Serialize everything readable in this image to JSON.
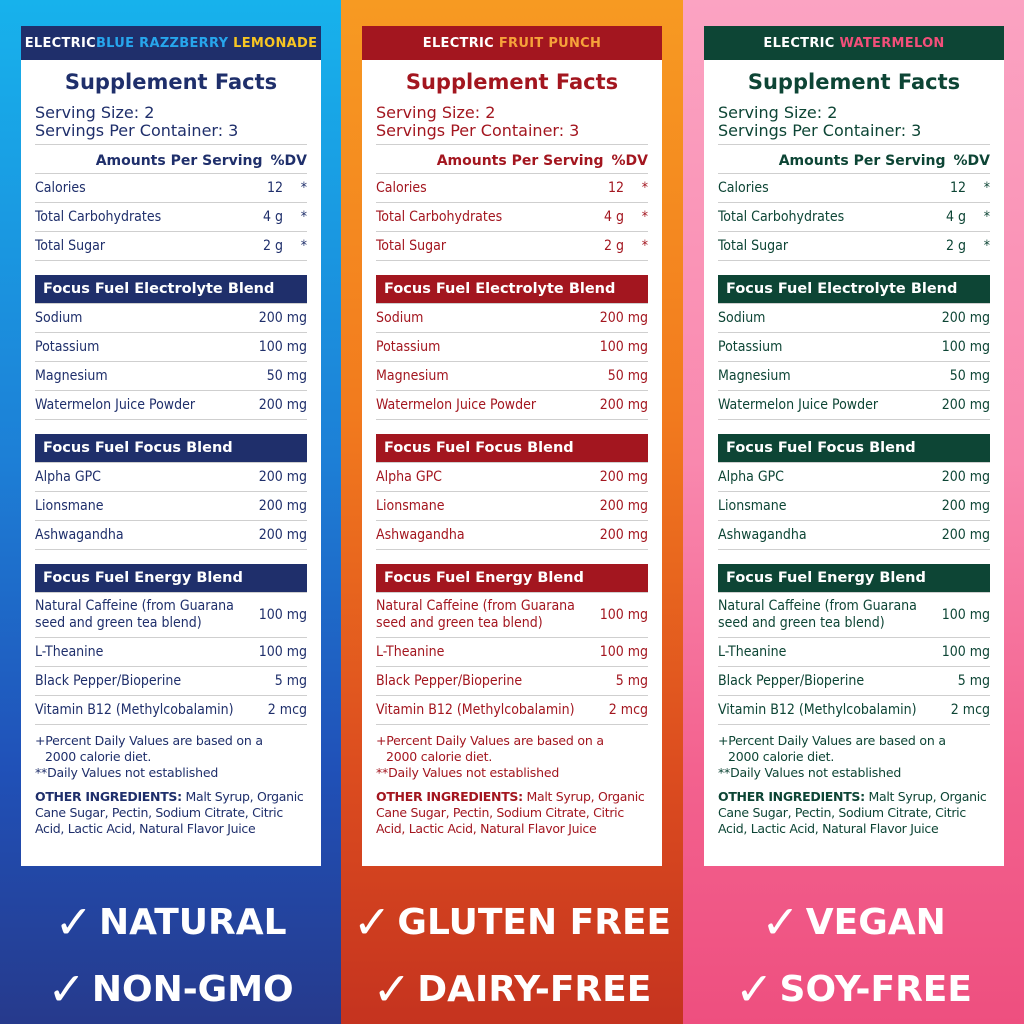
{
  "common": {
    "title": "Supplement Facts",
    "serving_size": "Serving Size: 2",
    "servings_per": "Servings Per Container: 3",
    "amounts": "Amounts Per Serving",
    "dv": "%DV",
    "rows": [
      {
        "n": "Calories",
        "v": "12",
        "dv": "*"
      },
      {
        "n": "Total Carbohydrates",
        "v": "4 g",
        "dv": "*"
      },
      {
        "n": "Total Sugar",
        "v": "2 g",
        "dv": "*"
      }
    ],
    "blend1": "Focus Fuel Electrolyte Blend",
    "blend1_rows": [
      {
        "n": "Sodium",
        "v": "200 mg"
      },
      {
        "n": "Potassium",
        "v": "100 mg"
      },
      {
        "n": "Magnesium",
        "v": "50 mg"
      },
      {
        "n": "Watermelon Juice Powder",
        "v": "200 mg"
      }
    ],
    "blend2": "Focus Fuel Focus Blend",
    "blend2_rows": [
      {
        "n": "Alpha GPC",
        "v": "200 mg"
      },
      {
        "n": "Lionsmane",
        "v": "200 mg"
      },
      {
        "n": "Ashwagandha",
        "v": "200 mg"
      }
    ],
    "blend3": "Focus Fuel Energy Blend",
    "blend3_rows": [
      {
        "n": "Natural Caffeine (from Guarana seed and green tea blend)",
        "v": "100 mg"
      },
      {
        "n": "L-Theanine",
        "v": "100 mg"
      },
      {
        "n": "Black Pepper/Bioperine",
        "v": "5 mg"
      },
      {
        "n": "Vitamin B12 (Methylcobalamin)",
        "v": "2 mcg"
      }
    ],
    "foot1": "+Percent Daily Values are based on a",
    "foot2": "2000 calorie diet.",
    "foot3": "**Daily Values not established",
    "ing_label": "OTHER INGREDIENTS:",
    "ing_text": " Malt Syrup, Organic Cane Sugar, Pectin, Sodium Citrate, Citric Acid, Lactic Acid, Natural Flavor Juice"
  },
  "panels": [
    {
      "prefix": "ELECTRIC ",
      "flavor_a": "BLUE RAZZBERRY ",
      "flavor_b": "LEMONADE",
      "claim1": "NATURAL",
      "claim2": "NON-GMO"
    },
    {
      "prefix": "ELECTRIC ",
      "flavor_a": "FRUIT PUNCH",
      "flavor_b": "",
      "claim1": "GLUTEN FREE",
      "claim2": "DAIRY-FREE"
    },
    {
      "prefix": "ELECTRIC ",
      "flavor_a": "WATERMELON",
      "flavor_b": "",
      "claim1": "VEGAN",
      "claim2": "SOY-FREE"
    }
  ],
  "check_glyph": "✓",
  "colors": {
    "blue_dark": "#1f2f6b",
    "blue_accent": "#27a6ec",
    "blue_lemon": "#f7c623",
    "red_dark": "#a3161f",
    "red_accent": "#f6a23a",
    "green_dark": "#0d4535",
    "green_accent": "#f24f7a"
  }
}
